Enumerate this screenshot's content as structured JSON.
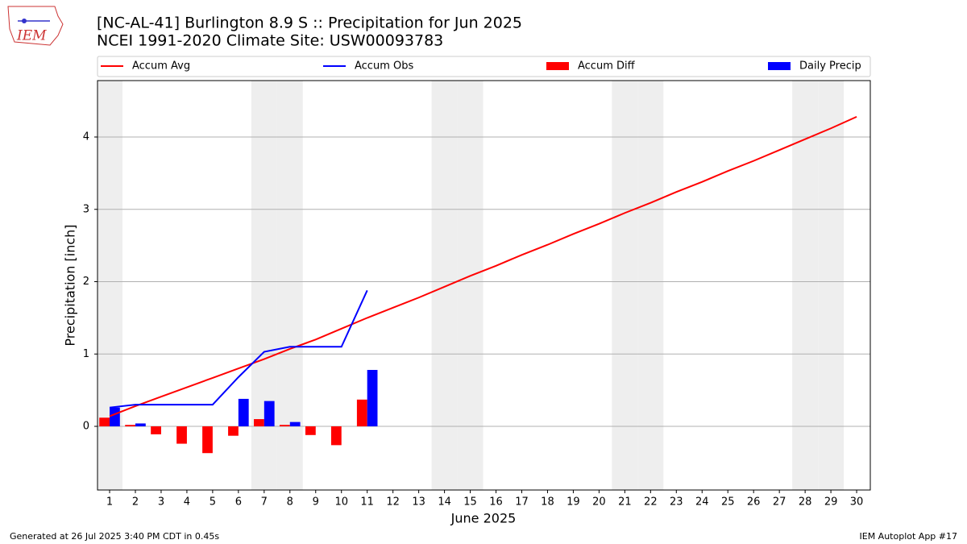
{
  "logo_text": "IEM",
  "footer_left": "Generated at 26 Jul 2025 3:40 PM CDT in 0.45s",
  "footer_right": "IEM Autoplot App #17",
  "chart_data": {
    "type": "bar",
    "title": "[NC-AL-41] Burlington 8.9 S :: Precipitation for Jun 2025",
    "subtitle": "NCEI 1991-2020 Climate Site: USW00093783",
    "xlabel": "June 2025",
    "ylabel": "Precipitation [inch]",
    "x": [
      1,
      2,
      3,
      4,
      5,
      6,
      7,
      8,
      9,
      10,
      11,
      12,
      13,
      14,
      15,
      16,
      17,
      18,
      19,
      20,
      21,
      22,
      23,
      24,
      25,
      26,
      27,
      28,
      29,
      30
    ],
    "xlim": [
      0.53,
      30.53
    ],
    "ylim": [
      -0.88,
      4.78
    ],
    "yticks": [
      0,
      1,
      2,
      3,
      4
    ],
    "grid": true,
    "weekend_shading": true,
    "series": [
      {
        "name": "Accum Avg",
        "kind": "line",
        "color": "#ff0000",
        "values": [
          0.14,
          0.28,
          0.41,
          0.54,
          0.67,
          0.8,
          0.93,
          1.07,
          1.2,
          1.35,
          1.5,
          1.64,
          1.78,
          1.93,
          2.08,
          2.22,
          2.37,
          2.51,
          2.66,
          2.8,
          2.95,
          3.09,
          3.24,
          3.38,
          3.53,
          3.67,
          3.82,
          3.97,
          4.12,
          4.28
        ]
      },
      {
        "name": "Accum Obs",
        "kind": "line",
        "color": "#0000ff",
        "values": [
          0.26,
          0.3,
          0.3,
          0.3,
          0.3,
          0.68,
          1.03,
          1.1,
          1.1,
          1.1,
          1.88,
          null,
          null,
          null,
          null,
          null,
          null,
          null,
          null,
          null,
          null,
          null,
          null,
          null,
          null,
          null,
          null,
          null,
          null,
          null
        ]
      },
      {
        "name": "Accum Diff",
        "kind": "bar",
        "color": "#ff0000",
        "values": [
          0.12,
          0.02,
          -0.11,
          -0.24,
          -0.37,
          -0.13,
          0.1,
          0.02,
          -0.12,
          -0.26,
          0.37,
          null,
          null,
          null,
          null,
          null,
          null,
          null,
          null,
          null,
          null,
          null,
          null,
          null,
          null,
          null,
          null,
          null,
          null,
          null
        ]
      },
      {
        "name": "Daily Precip",
        "kind": "bar",
        "color": "#0000ff",
        "values": [
          0.26,
          0.04,
          0,
          0,
          0,
          0.38,
          0.35,
          0.06,
          0,
          0,
          0.78,
          null,
          null,
          null,
          null,
          null,
          null,
          null,
          null,
          null,
          null,
          null,
          null,
          null,
          null,
          null,
          null,
          null,
          null,
          null
        ]
      }
    ]
  }
}
